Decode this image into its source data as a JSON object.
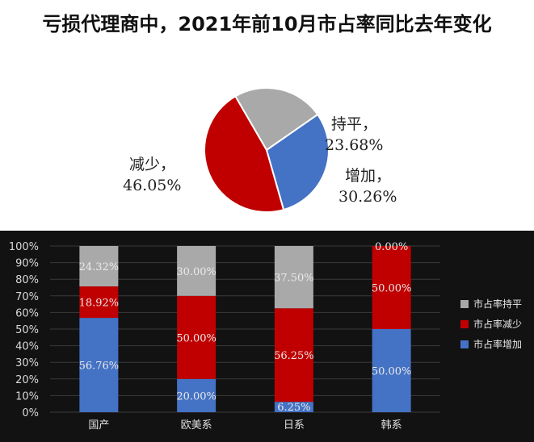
{
  "title": "亏损代理商中，2021年前10月市占率同比去年变化",
  "chart_data": [
    {
      "type": "pie",
      "slices": [
        {
          "name": "持平",
          "value": 23.68,
          "label": "23.68%",
          "color": "#a9a9a9"
        },
        {
          "name": "增加",
          "value": 30.26,
          "label": "30.26%",
          "color": "#4472c4"
        },
        {
          "name": "减少",
          "value": 46.05,
          "label": "46.05%",
          "color": "#c00000"
        }
      ]
    },
    {
      "type": "bar",
      "stacked": true,
      "percent_stacked": true,
      "categories": [
        "国产",
        "欧美系",
        "日系",
        "韩系"
      ],
      "series": [
        {
          "name": "市占率增加",
          "color": "#4472c4",
          "values": [
            56.76,
            20.0,
            6.25,
            50.0
          ],
          "labels": [
            "56.76%",
            "20.00%",
            "6.25%",
            "50.00%"
          ]
        },
        {
          "name": "市占率减少",
          "color": "#c00000",
          "values": [
            18.92,
            50.0,
            56.25,
            50.0
          ],
          "labels": [
            "18.92%",
            "50.00%",
            "56.25%",
            "50.00%"
          ]
        },
        {
          "name": "市占率持平",
          "color": "#a9a9a9",
          "values": [
            24.32,
            30.0,
            37.5,
            0.0
          ],
          "labels": [
            "24.32%",
            "30.00%",
            "37.50%",
            "0.00%"
          ]
        }
      ],
      "y_ticks": [
        "0%",
        "10%",
        "20%",
        "30%",
        "40%",
        "50%",
        "60%",
        "70%",
        "80%",
        "90%",
        "100%"
      ],
      "ylim": [
        0,
        100
      ],
      "legend": {
        "position": "right",
        "entries": [
          "市占率持平",
          "市占率减少",
          "市占率增加"
        ]
      },
      "grid": true
    }
  ]
}
